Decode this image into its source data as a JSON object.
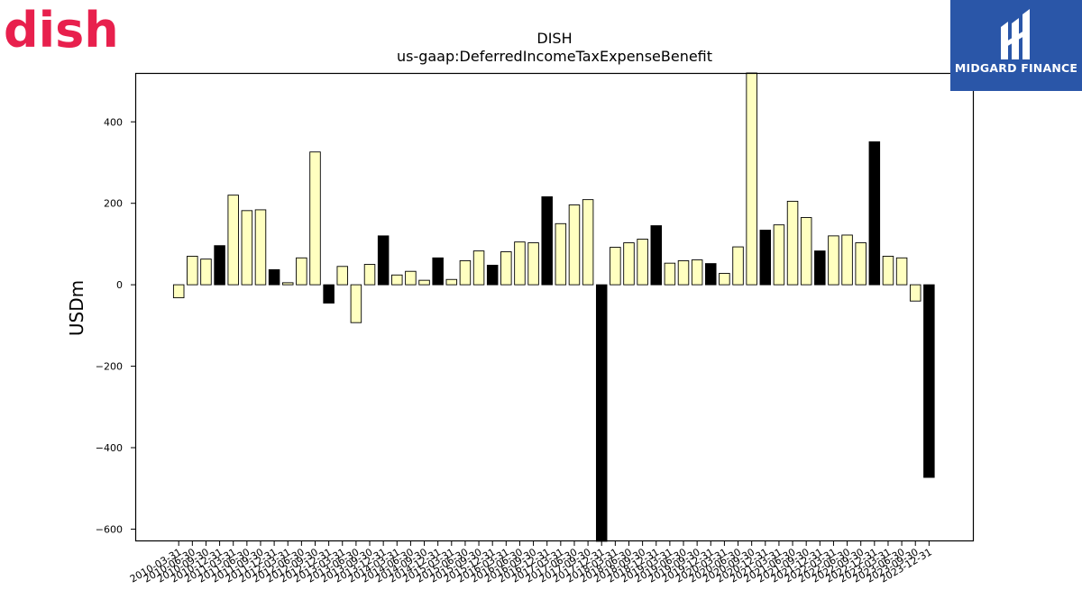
{
  "brand": {
    "logo_text": "dish",
    "logo_color": "#e8204d"
  },
  "badge": {
    "label": "MIDGARD FINANCE",
    "background": "#2a56a8"
  },
  "chart_data": {
    "type": "bar",
    "title": "DISH",
    "subtitle": "us-gaap:DeferredIncomeTaxExpenseBenefit",
    "ylabel": "USDm",
    "xlabel": "",
    "ylim": [
      -630,
      520
    ],
    "yticks": [
      -600,
      -400,
      -200,
      0,
      200,
      400
    ],
    "colors": {
      "quarterly": "#ffffc0",
      "annual": "#000000",
      "edge": "#000000"
    },
    "categories": [
      "2010-03-31",
      "2010-06-30",
      "2010-09-30",
      "2010-12-31",
      "2011-03-31",
      "2011-06-30",
      "2011-09-30",
      "2011-12-31",
      "2012-03-31",
      "2012-06-30",
      "2012-09-30",
      "2012-12-31",
      "2013-03-31",
      "2013-06-30",
      "2013-09-30",
      "2013-12-31",
      "2014-03-31",
      "2014-06-30",
      "2014-09-30",
      "2014-12-31",
      "2015-03-31",
      "2015-06-30",
      "2015-09-30",
      "2015-12-31",
      "2016-03-31",
      "2016-06-30",
      "2016-09-30",
      "2016-12-31",
      "2017-03-31",
      "2017-06-30",
      "2017-09-30",
      "2017-12-31",
      "2018-03-31",
      "2018-06-30",
      "2018-09-30",
      "2018-12-31",
      "2019-03-31",
      "2019-06-30",
      "2019-09-30",
      "2019-12-31",
      "2020-03-31",
      "2020-06-30",
      "2020-09-30",
      "2020-12-31",
      "2021-03-31",
      "2021-06-30",
      "2021-09-30",
      "2021-12-31",
      "2022-03-31",
      "2022-06-30",
      "2022-09-30",
      "2022-12-31",
      "2023-03-31",
      "2023-06-30",
      "2023-09-30",
      "2023-12-31"
    ],
    "tick_labels": [
      "2010-03-31",
      "2010-06-30",
      "2010-09-30",
      "2010-12-31",
      "2011-03-31",
      "2011-06-30",
      "2011-09-30",
      "2011-12-31",
      "2012-03-31",
      "2012-06-30",
      "2012-09-30",
      "2012-12-31",
      "2013-03-31",
      "2013-06-30",
      "2013-09-30",
      "2013-12-31",
      "2014-03-31",
      "2014-06-30",
      "2014-09-30",
      "2014-12-31",
      "2015-03-31",
      "2015-06-30",
      "2015-09-30",
      "2015-12-31",
      "2016-03-31",
      "2016-06-30",
      "2016-09-30",
      "2016-12-31",
      "2017-03-31",
      "2017-06-30",
      "2017-09-30",
      "2017-12-31",
      "2018-03-31",
      "2018-06-30",
      "2018-09-30",
      "2018-12-31",
      "2019-03-31",
      "2019-06-30",
      "2019-09-30",
      "2019-12-31",
      "2020-03-31",
      "2020-06-30",
      "2020-09-30",
      "2020-12-31",
      "2021-03-31",
      "2021-06-30",
      "2021-09-30",
      "2021-12-31",
      "2022-03-31",
      "2022-06-30",
      "2022-09-30",
      "2022-12-31",
      "2023-03-31",
      "2023-06-30",
      "2023-09-30",
      "2023-12-31"
    ],
    "values": [
      -32,
      70,
      63,
      96,
      220,
      182,
      184,
      37,
      5,
      66,
      326,
      -45,
      45,
      -93,
      50,
      120,
      24,
      33,
      11,
      66,
      13,
      59,
      83,
      48,
      81,
      105,
      103,
      216,
      150,
      196,
      209,
      -640,
      92,
      103,
      112,
      145,
      53,
      59,
      61,
      52,
      28,
      93,
      520,
      134,
      147,
      205,
      165,
      83,
      120,
      122,
      103,
      351,
      70,
      66,
      -40,
      -473
    ],
    "annual": [
      false,
      false,
      false,
      true,
      false,
      false,
      false,
      true,
      false,
      false,
      false,
      true,
      false,
      false,
      false,
      true,
      false,
      false,
      false,
      true,
      false,
      false,
      false,
      true,
      false,
      false,
      false,
      true,
      false,
      false,
      false,
      true,
      false,
      false,
      false,
      true,
      false,
      false,
      false,
      true,
      false,
      false,
      false,
      true,
      false,
      false,
      false,
      true,
      false,
      false,
      false,
      true,
      false,
      false,
      false,
      true
    ],
    "grid": false,
    "legend": "none"
  }
}
